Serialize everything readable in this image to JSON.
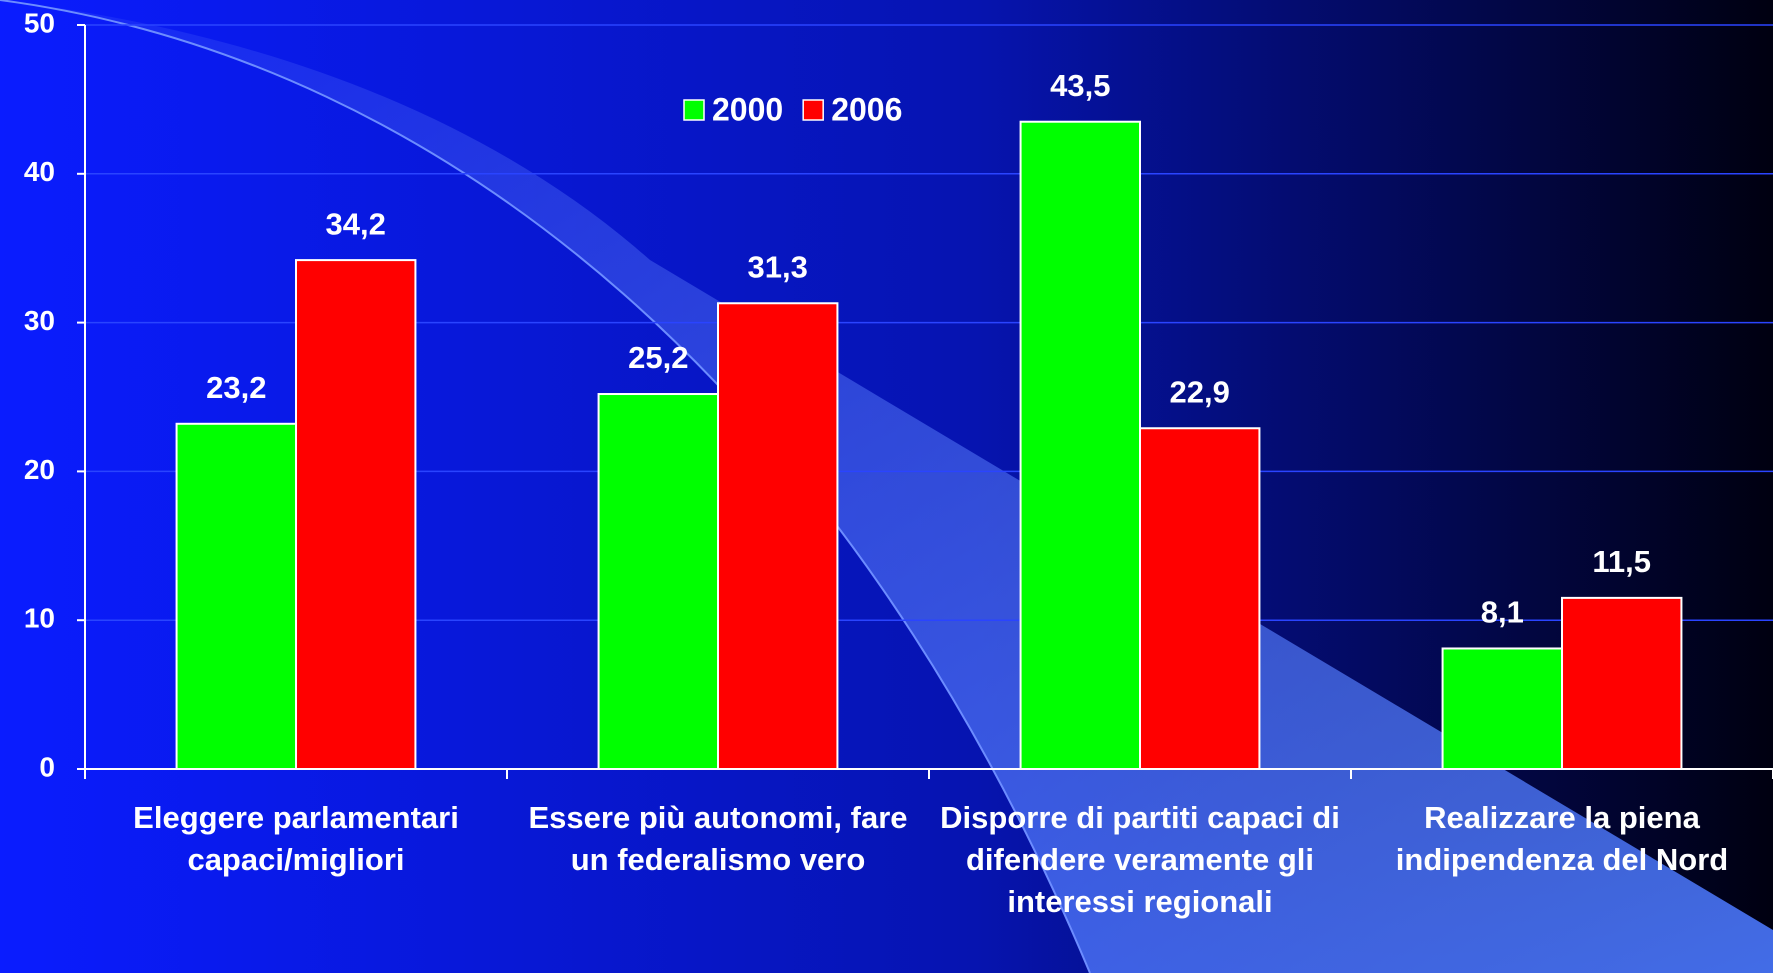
{
  "chart_data": {
    "type": "bar",
    "categories": [
      "Eleggere parlamentari capaci/migliori",
      "Essere più autonomi, fare un federalismo vero",
      "Disporre di partiti capaci di difendere veramente gli interessi regionali",
      "Realizzare la piena indipendenza del Nord"
    ],
    "series": [
      {
        "name": "2000",
        "color": "#00ff00",
        "values": [
          23.2,
          25.2,
          43.5,
          8.1
        ],
        "value_labels": [
          "23,2",
          "25,2",
          "43,5",
          "8,1"
        ]
      },
      {
        "name": "2006",
        "color": "#ff0000",
        "values": [
          34.2,
          31.3,
          22.9,
          11.5
        ],
        "value_labels": [
          "34,2",
          "31,3",
          "22,9",
          "11,5"
        ]
      }
    ],
    "ylim": [
      0,
      50
    ],
    "yticks": [
      0,
      10,
      20,
      30,
      40,
      50
    ],
    "grid": true,
    "legend": "top"
  }
}
